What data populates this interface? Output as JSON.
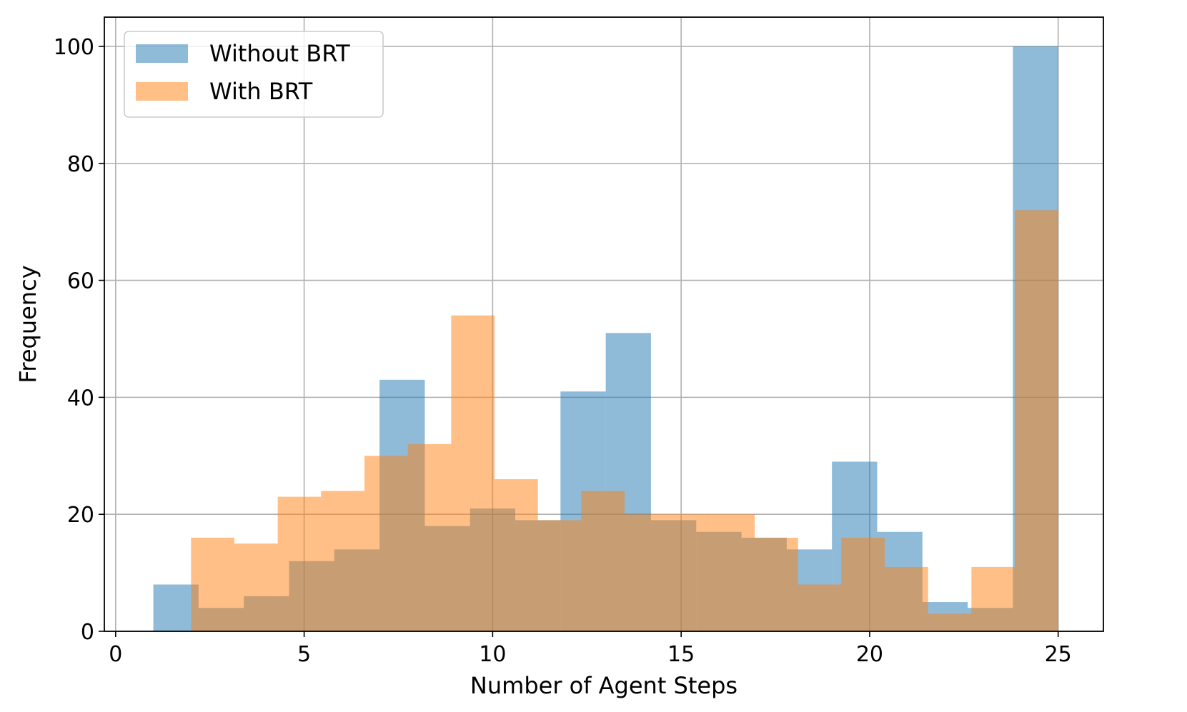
{
  "chart_data": {
    "type": "bar",
    "subtype": "overlapping-histogram",
    "title": "",
    "xlabel": "Number of Agent Steps",
    "ylabel": "Frequency",
    "xlim": [
      -0.3,
      26.2
    ],
    "ylim": [
      0,
      105
    ],
    "xticks": [
      0,
      5,
      10,
      15,
      20,
      25
    ],
    "yticks": [
      0,
      20,
      40,
      60,
      80,
      100
    ],
    "grid": true,
    "legend_position": "top-left",
    "series": [
      {
        "name": "Without BRT",
        "color": "#1f77b4",
        "opacity": 0.5,
        "bin_edges": [
          1.0,
          2.2,
          3.4,
          4.6,
          5.8,
          7.0,
          8.2,
          9.4,
          10.6,
          11.8,
          13.0,
          14.2,
          15.4,
          16.6,
          17.8,
          19.0,
          20.2,
          21.4,
          22.6,
          23.8,
          25.0
        ],
        "counts": [
          8,
          4,
          6,
          12,
          14,
          43,
          18,
          21,
          19,
          41,
          51,
          19,
          17,
          16,
          14,
          29,
          17,
          5,
          4,
          100
        ]
      },
      {
        "name": "With BRT",
        "color": "#ff7f0e",
        "opacity": 0.5,
        "bin_edges": [
          2.0,
          3.15,
          4.3,
          5.45,
          6.6,
          7.75,
          8.9,
          10.05,
          11.2,
          12.35,
          13.5,
          14.65,
          15.8,
          16.95,
          18.1,
          19.25,
          20.4,
          21.55,
          22.7,
          23.85,
          25.0
        ],
        "counts": [
          16,
          15,
          23,
          24,
          30,
          32,
          54,
          26,
          19,
          24,
          20,
          20,
          20,
          16,
          8,
          16,
          11,
          3,
          11,
          72
        ]
      }
    ]
  }
}
